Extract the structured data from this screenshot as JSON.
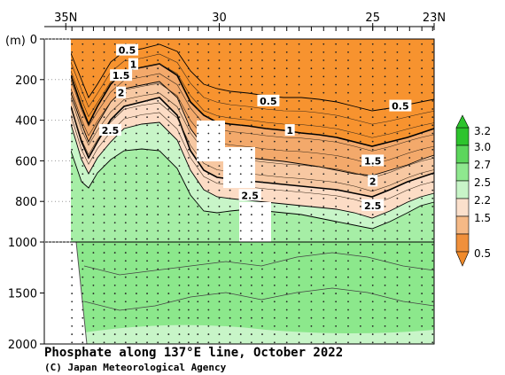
{
  "chart_data": {
    "type": "contour-section",
    "title": "Phosphate along 137°E line, October 2022",
    "credit": "(C) Japan Meteorological Agency",
    "ylabel": "(m)",
    "x_ticks": [
      {
        "lat": 35,
        "label": "35N"
      },
      {
        "lat": 30,
        "label": "30"
      },
      {
        "lat": 25,
        "label": "25"
      },
      {
        "lat": 23,
        "label": "23N"
      }
    ],
    "xlim": [
      35.7,
      23
    ],
    "y_ticks_upper": [
      "0",
      "200",
      "400",
      "600",
      "800",
      "1000"
    ],
    "y_ticks_lower": [
      "1500",
      "2000"
    ],
    "y_upper_range": [
      0,
      1000
    ],
    "y_lower_range": [
      1000,
      2000
    ],
    "station_lats": [
      34.8,
      34.45,
      34.1,
      33.75,
      33.4,
      33.05,
      32.7,
      32.35,
      32.0,
      31.65,
      31.3,
      31.0,
      30.7,
      30.35,
      30.0,
      29.65,
      29.3,
      28.95,
      28.6,
      28.2,
      27.8,
      27.4,
      27.0,
      26.6,
      26.2,
      25.8,
      25.4,
      25.0,
      24.6,
      24.2,
      23.8,
      23.4,
      23.05
    ],
    "contour_labels": [
      {
        "lat": 33.0,
        "depth": 55,
        "text": "0.5"
      },
      {
        "lat": 32.8,
        "depth": 125,
        "text": "1"
      },
      {
        "lat": 33.2,
        "depth": 180,
        "text": "1.5"
      },
      {
        "lat": 33.2,
        "depth": 265,
        "text": "2"
      },
      {
        "lat": 33.55,
        "depth": 450,
        "text": "2.5"
      },
      {
        "lat": 28.4,
        "depth": 305,
        "text": "0.5"
      },
      {
        "lat": 24.1,
        "depth": 330,
        "text": "0.5"
      },
      {
        "lat": 27.7,
        "depth": 450,
        "text": "1"
      },
      {
        "lat": 25.0,
        "depth": 600,
        "text": "1.5"
      },
      {
        "lat": 25.0,
        "depth": 700,
        "text": "2"
      },
      {
        "lat": 29.0,
        "depth": 770,
        "text": "2.5"
      },
      {
        "lat": 25.0,
        "depth": 820,
        "text": "2.5"
      }
    ],
    "legend": {
      "ticks": [
        "3.2",
        "3.0",
        "2.7",
        "2.5",
        "2.2",
        "1.5",
        "0.5"
      ],
      "bins": [
        {
          "color": "#2dc42d"
        },
        {
          "color": "#5cd65c"
        },
        {
          "color": "#8fe88f"
        },
        {
          "color": "#c8f5c8"
        },
        {
          "color": "#fbe0cc"
        },
        {
          "color": "#f5b986"
        },
        {
          "color": "#f0903c"
        }
      ]
    },
    "fill_colors": {
      "orange": "#f7932f",
      "peach_dark": "#f3a96b",
      "peach": "#f7c8a2",
      "peach_light": "#fcdcc5",
      "mint": "#c8f5c8",
      "light_green": "#a6eea6",
      "green": "#8ce88c"
    }
  }
}
